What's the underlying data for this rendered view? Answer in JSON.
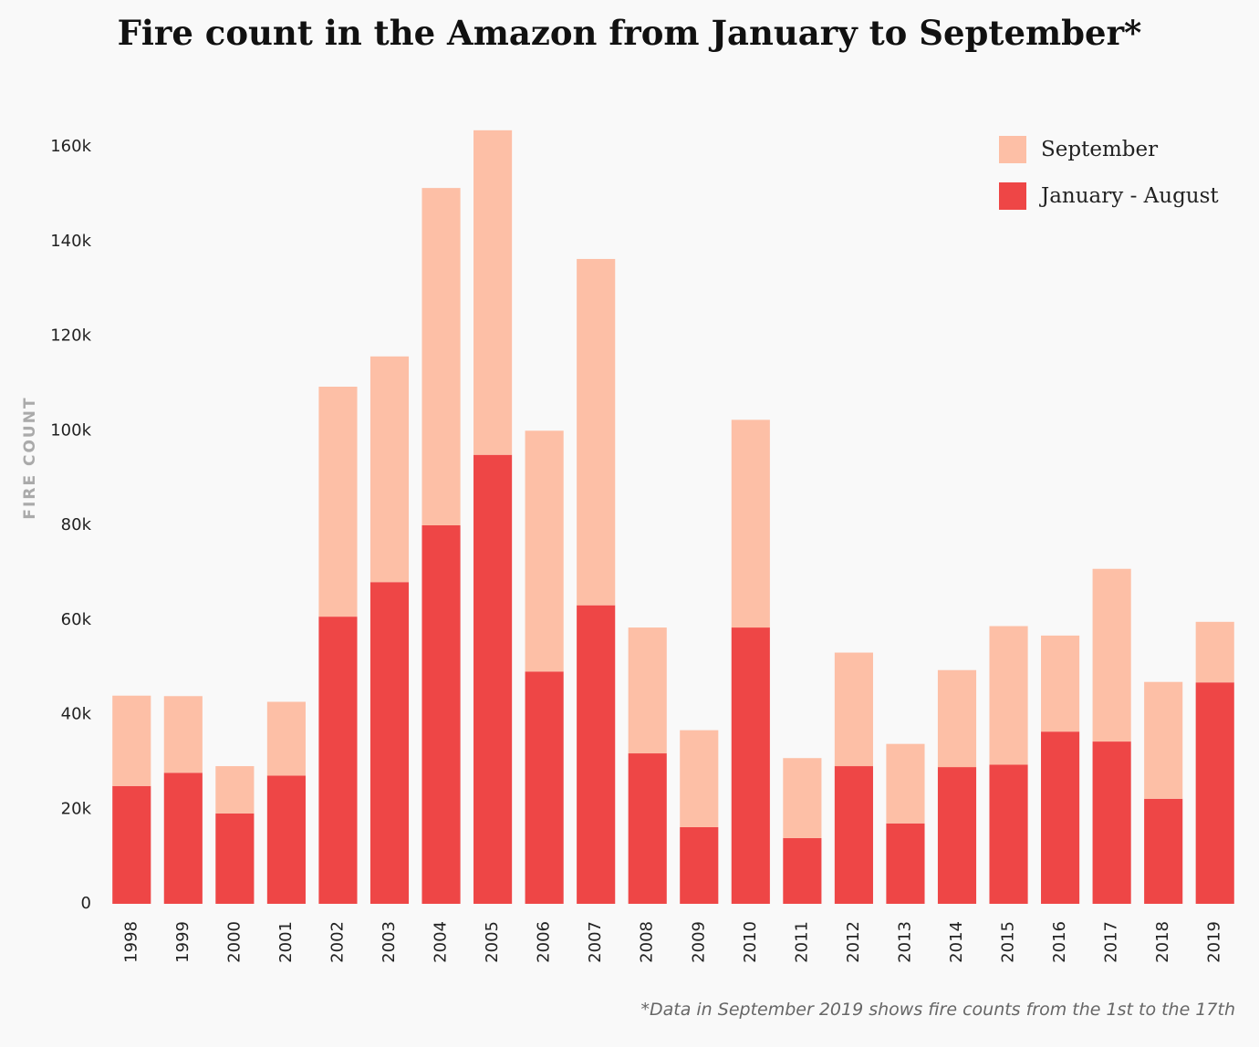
{
  "chart_data": {
    "type": "bar",
    "stacked": true,
    "title": "Fire count in the Amazon from January to September*",
    "ylabel": "FIRE COUNT",
    "xlabel": "",
    "ylim": [
      0,
      160000
    ],
    "yticks": [
      0,
      20000,
      40000,
      60000,
      80000,
      100000,
      120000,
      140000,
      160000
    ],
    "ytick_labels": [
      "0",
      "20k",
      "40k",
      "60k",
      "80k",
      "100k",
      "120k",
      "140k",
      "160k"
    ],
    "grid": false,
    "legend_position": "top-right",
    "categories": [
      "1998",
      "1999",
      "2000",
      "2001",
      "2002",
      "2003",
      "2004",
      "2005",
      "2006",
      "2007",
      "2008",
      "2009",
      "2010",
      "2011",
      "2012",
      "2013",
      "2014",
      "2015",
      "2016",
      "2017",
      "2018",
      "2019"
    ],
    "series": [
      {
        "name": "January - August",
        "color": "#ee4646",
        "values": [
          24900,
          27700,
          19100,
          27100,
          60700,
          68000,
          80000,
          94900,
          49100,
          63100,
          31800,
          16200,
          58400,
          13900,
          29100,
          17000,
          28900,
          29400,
          36400,
          34300,
          22200,
          46800
        ]
      },
      {
        "name": "September",
        "color": "#fdbfa6",
        "values": [
          19100,
          16200,
          10000,
          15600,
          48600,
          47700,
          71300,
          68600,
          50900,
          73200,
          26600,
          20500,
          43900,
          16900,
          24000,
          16800,
          20500,
          29300,
          20300,
          36500,
          24700,
          12800
        ]
      }
    ],
    "footnote": "*Data in September 2019 shows fire counts from the 1st to the 17th"
  }
}
